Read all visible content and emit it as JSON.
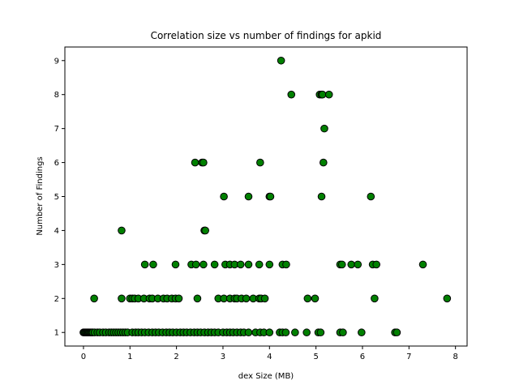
{
  "chart_data": {
    "type": "scatter",
    "title": "Correlation size vs number of findings for apkid",
    "xlabel": "dex Size (MB)",
    "ylabel": "Number of Findings",
    "xlim": [
      -0.4,
      8.25
    ],
    "ylim": [
      0.6,
      9.4
    ],
    "xticks": [
      0,
      1,
      2,
      3,
      4,
      5,
      6,
      7,
      8
    ],
    "yticks": [
      1,
      2,
      3,
      4,
      5,
      6,
      7,
      8,
      9
    ],
    "grid": false,
    "marker_fill": "#008000",
    "marker_edge": "#000000",
    "points": [
      [
        4.25,
        9
      ],
      [
        4.47,
        8
      ],
      [
        5.08,
        8
      ],
      [
        5.12,
        8
      ],
      [
        5.14,
        8
      ],
      [
        5.28,
        8
      ],
      [
        5.18,
        7
      ],
      [
        2.4,
        6
      ],
      [
        2.55,
        6
      ],
      [
        2.58,
        6
      ],
      [
        3.8,
        6
      ],
      [
        5.16,
        6
      ],
      [
        3.02,
        5
      ],
      [
        3.55,
        5
      ],
      [
        4.0,
        5
      ],
      [
        4.02,
        5
      ],
      [
        5.12,
        5
      ],
      [
        6.18,
        5
      ],
      [
        0.82,
        4
      ],
      [
        2.6,
        4
      ],
      [
        2.62,
        4
      ],
      [
        1.32,
        3
      ],
      [
        1.5,
        3
      ],
      [
        1.98,
        3
      ],
      [
        2.32,
        3
      ],
      [
        2.42,
        3
      ],
      [
        2.58,
        3
      ],
      [
        2.82,
        3
      ],
      [
        3.05,
        3
      ],
      [
        3.15,
        3
      ],
      [
        3.25,
        3
      ],
      [
        3.38,
        3
      ],
      [
        3.55,
        3
      ],
      [
        3.78,
        3
      ],
      [
        4.0,
        3
      ],
      [
        4.28,
        3
      ],
      [
        4.36,
        3
      ],
      [
        5.52,
        3
      ],
      [
        5.56,
        3
      ],
      [
        5.76,
        3
      ],
      [
        5.9,
        3
      ],
      [
        6.22,
        3
      ],
      [
        6.3,
        3
      ],
      [
        7.3,
        3
      ],
      [
        0.23,
        2
      ],
      [
        0.82,
        2
      ],
      [
        1.0,
        2
      ],
      [
        1.05,
        2
      ],
      [
        1.1,
        2
      ],
      [
        1.18,
        2
      ],
      [
        1.3,
        2
      ],
      [
        1.42,
        2
      ],
      [
        1.48,
        2
      ],
      [
        1.6,
        2
      ],
      [
        1.72,
        2
      ],
      [
        1.8,
        2
      ],
      [
        1.9,
        2
      ],
      [
        1.98,
        2
      ],
      [
        2.05,
        2
      ],
      [
        2.45,
        2
      ],
      [
        2.9,
        2
      ],
      [
        3.02,
        2
      ],
      [
        3.15,
        2
      ],
      [
        3.25,
        2
      ],
      [
        3.3,
        2
      ],
      [
        3.4,
        2
      ],
      [
        3.5,
        2
      ],
      [
        3.65,
        2
      ],
      [
        3.78,
        2
      ],
      [
        3.82,
        2
      ],
      [
        3.9,
        2
      ],
      [
        4.82,
        2
      ],
      [
        4.98,
        2
      ],
      [
        6.26,
        2
      ],
      [
        7.82,
        2
      ],
      [
        0.0,
        1
      ],
      [
        0.02,
        1
      ],
      [
        0.04,
        1
      ],
      [
        0.06,
        1
      ],
      [
        0.08,
        1
      ],
      [
        0.1,
        1
      ],
      [
        0.12,
        1
      ],
      [
        0.14,
        1
      ],
      [
        0.16,
        1
      ],
      [
        0.18,
        1
      ],
      [
        0.2,
        1
      ],
      [
        0.24,
        1
      ],
      [
        0.3,
        1
      ],
      [
        0.35,
        1
      ],
      [
        0.42,
        1
      ],
      [
        0.48,
        1
      ],
      [
        0.55,
        1
      ],
      [
        0.6,
        1
      ],
      [
        0.65,
        1
      ],
      [
        0.7,
        1
      ],
      [
        0.75,
        1
      ],
      [
        0.8,
        1
      ],
      [
        0.85,
        1
      ],
      [
        0.9,
        1
      ],
      [
        0.95,
        1
      ],
      [
        1.05,
        1
      ],
      [
        1.12,
        1
      ],
      [
        1.18,
        1
      ],
      [
        1.25,
        1
      ],
      [
        1.32,
        1
      ],
      [
        1.4,
        1
      ],
      [
        1.48,
        1
      ],
      [
        1.55,
        1
      ],
      [
        1.62,
        1
      ],
      [
        1.7,
        1
      ],
      [
        1.78,
        1
      ],
      [
        1.85,
        1
      ],
      [
        1.92,
        1
      ],
      [
        2.0,
        1
      ],
      [
        2.08,
        1
      ],
      [
        2.15,
        1
      ],
      [
        2.22,
        1
      ],
      [
        2.3,
        1
      ],
      [
        2.38,
        1
      ],
      [
        2.45,
        1
      ],
      [
        2.52,
        1
      ],
      [
        2.6,
        1
      ],
      [
        2.68,
        1
      ],
      [
        2.75,
        1
      ],
      [
        2.82,
        1
      ],
      [
        2.9,
        1
      ],
      [
        3.0,
        1
      ],
      [
        3.08,
        1
      ],
      [
        3.15,
        1
      ],
      [
        3.22,
        1
      ],
      [
        3.3,
        1
      ],
      [
        3.38,
        1
      ],
      [
        3.45,
        1
      ],
      [
        3.55,
        1
      ],
      [
        3.7,
        1
      ],
      [
        3.8,
        1
      ],
      [
        3.88,
        1
      ],
      [
        4.0,
        1
      ],
      [
        4.22,
        1
      ],
      [
        4.28,
        1
      ],
      [
        4.35,
        1
      ],
      [
        4.55,
        1
      ],
      [
        4.8,
        1
      ],
      [
        5.05,
        1
      ],
      [
        5.1,
        1
      ],
      [
        5.52,
        1
      ],
      [
        5.58,
        1
      ],
      [
        5.98,
        1
      ],
      [
        6.7,
        1
      ],
      [
        6.74,
        1
      ]
    ]
  }
}
